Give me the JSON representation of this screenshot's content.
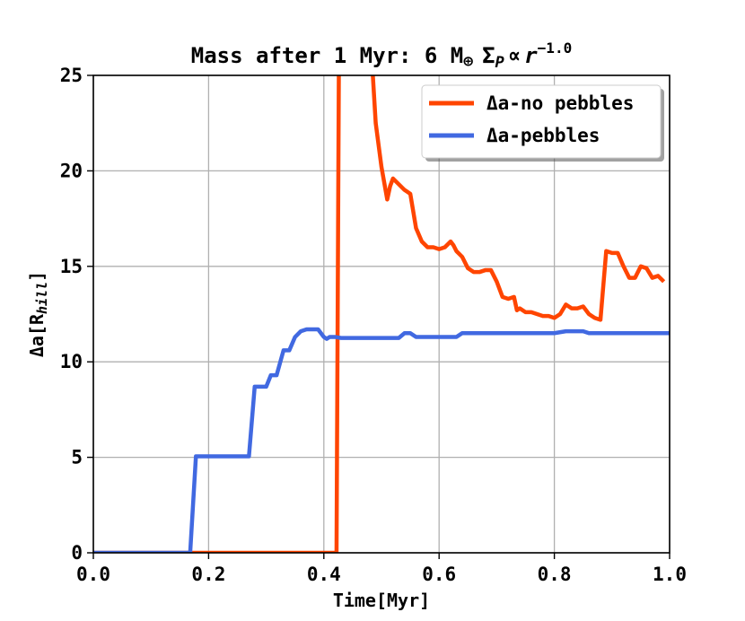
{
  "chart_data": {
    "type": "line",
    "title": {
      "main": "Mass after 1 Myr: 6 M",
      "earth_symbol": "⊕",
      "sigma": "Σ",
      "sigma_sub": "P",
      "propto": "∝",
      "r": "r",
      "exponent": "−1.0"
    },
    "xlabel": "Time[Myr]",
    "ylabel": {
      "main": "Δa[R",
      "sub": "hill",
      "close": "]"
    },
    "xlim": [
      0.0,
      1.0
    ],
    "ylim": [
      0,
      25
    ],
    "xticks": [
      "0.0",
      "0.2",
      "0.4",
      "0.6",
      "0.8",
      "1.0"
    ],
    "yticks": [
      "0",
      "5",
      "10",
      "15",
      "20",
      "25"
    ],
    "grid": true,
    "legend_position": "top-right",
    "series": [
      {
        "name": "Δa-no pebbles",
        "color": "#ff4500",
        "x": [
          0.0,
          0.1,
          0.2,
          0.3,
          0.4,
          0.422,
          0.426,
          0.43,
          0.485,
          0.49,
          0.5,
          0.51,
          0.515,
          0.52,
          0.53,
          0.54,
          0.545,
          0.55,
          0.56,
          0.57,
          0.58,
          0.59,
          0.6,
          0.61,
          0.62,
          0.625,
          0.63,
          0.64,
          0.65,
          0.66,
          0.67,
          0.68,
          0.69,
          0.7,
          0.71,
          0.72,
          0.73,
          0.735,
          0.74,
          0.75,
          0.76,
          0.77,
          0.78,
          0.79,
          0.8,
          0.81,
          0.82,
          0.83,
          0.84,
          0.85,
          0.86,
          0.87,
          0.88,
          0.885,
          0.89,
          0.9,
          0.91,
          0.92,
          0.93,
          0.94,
          0.95,
          0.96,
          0.97,
          0.98,
          0.99
        ],
        "y": [
          0,
          0,
          0,
          0,
          0,
          0,
          25,
          30,
          25,
          22.5,
          20.2,
          18.5,
          19.2,
          19.6,
          19.3,
          19.0,
          18.9,
          18.8,
          17.0,
          16.3,
          16.0,
          16.0,
          15.9,
          16.0,
          16.3,
          16.1,
          15.8,
          15.5,
          14.9,
          14.7,
          14.7,
          14.8,
          14.8,
          14.2,
          13.4,
          13.3,
          13.4,
          12.7,
          12.8,
          12.6,
          12.6,
          12.5,
          12.4,
          12.4,
          12.3,
          12.5,
          13.0,
          12.8,
          12.8,
          12.9,
          12.5,
          12.3,
          12.2,
          14.0,
          15.8,
          15.7,
          15.7,
          15.0,
          14.4,
          14.4,
          15.0,
          14.9,
          14.4,
          14.5,
          14.2
        ]
      },
      {
        "name": "Δa-pebbles",
        "color": "#4169e1",
        "x": [
          0.0,
          0.1,
          0.168,
          0.178,
          0.2,
          0.25,
          0.27,
          0.28,
          0.29,
          0.3,
          0.308,
          0.318,
          0.33,
          0.34,
          0.35,
          0.36,
          0.37,
          0.38,
          0.39,
          0.4,
          0.405,
          0.41,
          0.42,
          0.43,
          0.45,
          0.5,
          0.53,
          0.54,
          0.55,
          0.56,
          0.6,
          0.63,
          0.64,
          0.7,
          0.75,
          0.8,
          0.82,
          0.85,
          0.86,
          0.9,
          0.95,
          1.0
        ],
        "y": [
          0,
          0,
          0,
          5.05,
          5.05,
          5.05,
          5.05,
          8.7,
          8.7,
          8.7,
          9.3,
          9.3,
          10.6,
          10.6,
          11.3,
          11.6,
          11.7,
          11.7,
          11.7,
          11.3,
          11.2,
          11.3,
          11.3,
          11.25,
          11.25,
          11.25,
          11.25,
          11.5,
          11.5,
          11.3,
          11.3,
          11.3,
          11.5,
          11.5,
          11.5,
          11.5,
          11.6,
          11.6,
          11.5,
          11.5,
          11.5,
          11.5
        ]
      }
    ]
  }
}
